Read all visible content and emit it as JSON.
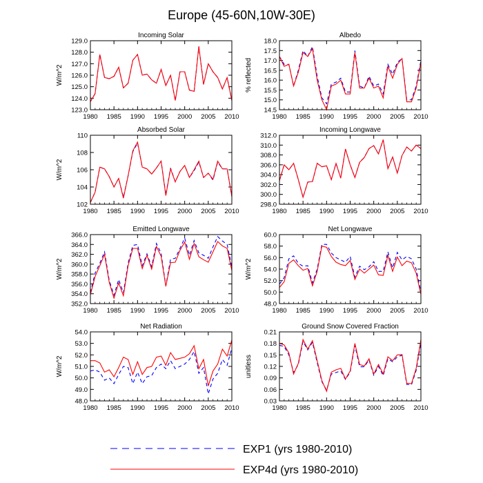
{
  "title": "Europe (45-60N,10W-30E)",
  "legend": [
    {
      "label": "EXP1 (yrs 1980-2010)",
      "color": "#0000ff",
      "dash": true
    },
    {
      "label": "EXP4d (yrs 1980-2010)",
      "color": "#ff0000",
      "dash": false
    }
  ],
  "chart_data": [
    {
      "type": "line",
      "title": "Incoming Solar",
      "ylabel": "W/m^2",
      "xlim": [
        1980,
        2010
      ],
      "ylim": [
        123.0,
        129.0
      ],
      "xticks": [
        "1980",
        "1985",
        "1990",
        "1995",
        "2000",
        "2005",
        "2010"
      ],
      "yticks": [
        "123.0",
        "124.0",
        "125.0",
        "126.0",
        "127.0",
        "128.0",
        "129.0"
      ],
      "x": [
        1980,
        1981,
        1982,
        1983,
        1984,
        1985,
        1986,
        1987,
        1988,
        1989,
        1990,
        1991,
        1992,
        1993,
        1994,
        1995,
        1996,
        1997,
        1998,
        1999,
        2000,
        2001,
        2002,
        2003,
        2004,
        2005,
        2006,
        2007,
        2008,
        2009,
        2010
      ],
      "series": [
        {
          "name": "EXP1",
          "values": [
            123.7,
            124.4,
            127.8,
            125.8,
            125.7,
            125.9,
            126.7,
            124.9,
            125.3,
            127.3,
            127.8,
            126.0,
            126.1,
            125.6,
            125.3,
            126.5,
            125.1,
            126.0,
            123.8,
            126.3,
            126.3,
            124.7,
            124.6,
            128.5,
            125.2,
            127.0,
            126.3,
            125.8,
            124.8,
            125.8,
            123.8
          ]
        },
        {
          "name": "EXP4d",
          "values": [
            123.7,
            124.4,
            127.8,
            125.8,
            125.7,
            125.9,
            126.7,
            124.9,
            125.3,
            127.3,
            127.8,
            126.0,
            126.1,
            125.6,
            125.3,
            126.5,
            125.1,
            126.0,
            123.8,
            126.3,
            126.3,
            124.7,
            124.6,
            128.5,
            125.2,
            127.0,
            126.3,
            125.8,
            124.8,
            125.8,
            123.8
          ]
        }
      ]
    },
    {
      "type": "line",
      "title": "Albedo",
      "ylabel": "% reflected",
      "xlim": [
        1980,
        2010
      ],
      "ylim": [
        14.5,
        18.0
      ],
      "xticks": [
        "1980",
        "1985",
        "1990",
        "1995",
        "2000",
        "2005",
        "2010"
      ],
      "yticks": [
        "14.5",
        "15.0",
        "15.5",
        "16.0",
        "16.5",
        "17.0",
        "17.5",
        "18.0"
      ],
      "x": [
        1980,
        1981,
        1982,
        1983,
        1984,
        1985,
        1986,
        1987,
        1988,
        1989,
        1990,
        1991,
        1992,
        1993,
        1994,
        1995,
        1996,
        1997,
        1998,
        1999,
        2000,
        2001,
        2002,
        2003,
        2004,
        2005,
        2006,
        2007,
        2008,
        2009,
        2010
      ],
      "series": [
        {
          "name": "EXP1",
          "values": [
            17.2,
            16.8,
            16.8,
            15.7,
            16.5,
            17.5,
            17.2,
            17.7,
            16.2,
            15.1,
            14.8,
            15.8,
            15.9,
            16.1,
            15.4,
            15.4,
            17.5,
            15.7,
            15.6,
            16.2,
            15.7,
            15.8,
            15.3,
            16.8,
            16.3,
            16.9,
            17.1,
            15.0,
            15.0,
            15.7,
            17.0
          ]
        },
        {
          "name": "EXP4d",
          "values": [
            17.2,
            16.7,
            16.8,
            15.7,
            16.4,
            17.4,
            17.2,
            17.6,
            16.0,
            15.0,
            14.5,
            15.7,
            15.8,
            16.0,
            15.3,
            15.3,
            17.4,
            15.6,
            15.6,
            16.1,
            15.6,
            15.7,
            15.1,
            16.7,
            16.1,
            16.8,
            17.1,
            14.9,
            14.9,
            15.6,
            16.9
          ]
        }
      ]
    },
    {
      "type": "line",
      "title": "Absorbed Solar",
      "ylabel": "W/m^2",
      "xlim": [
        1980,
        2010
      ],
      "ylim": [
        102,
        110
      ],
      "xticks": [
        "1980",
        "1985",
        "1990",
        "1995",
        "2000",
        "2005",
        "2010"
      ],
      "yticks": [
        "102",
        "104",
        "106",
        "108",
        "110"
      ],
      "x": [
        1980,
        1981,
        1982,
        1983,
        1984,
        1985,
        1986,
        1987,
        1988,
        1989,
        1990,
        1991,
        1992,
        1993,
        1994,
        1995,
        1996,
        1997,
        1998,
        1999,
        2000,
        2001,
        2002,
        2003,
        2004,
        2005,
        2006,
        2007,
        2008,
        2009,
        2010
      ],
      "series": [
        {
          "name": "EXP1",
          "values": [
            102.2,
            103.4,
            106.3,
            106.1,
            105.2,
            104.0,
            105.0,
            102.8,
            105.3,
            108.1,
            109.1,
            106.3,
            106.1,
            105.5,
            106.2,
            107.0,
            103.1,
            106.2,
            104.6,
            105.8,
            106.5,
            105.1,
            105.9,
            106.9,
            105.1,
            105.6,
            104.8,
            106.9,
            106.1,
            106.1,
            102.9
          ]
        },
        {
          "name": "EXP4d",
          "values": [
            102.2,
            103.4,
            106.3,
            106.1,
            105.2,
            104.0,
            105.0,
            102.7,
            105.3,
            108.2,
            109.2,
            106.3,
            106.1,
            105.5,
            106.2,
            107.0,
            103.0,
            106.1,
            104.6,
            105.8,
            106.5,
            105.1,
            106.0,
            107.0,
            105.1,
            105.6,
            104.9,
            107.0,
            106.1,
            106.1,
            102.9
          ]
        }
      ]
    },
    {
      "type": "line",
      "title": "Incoming Longwave",
      "ylabel": "",
      "xlim": [
        1980,
        2010
      ],
      "ylim": [
        298.0,
        312.0
      ],
      "xticks": [
        "1980",
        "1985",
        "1990",
        "1995",
        "2000",
        "2005",
        "2010"
      ],
      "yticks": [
        "298.0",
        "300.0",
        "302.0",
        "304.0",
        "306.0",
        "308.0",
        "310.0",
        "312.0"
      ],
      "x": [
        1980,
        1981,
        1982,
        1983,
        1984,
        1985,
        1986,
        1987,
        1988,
        1989,
        1990,
        1991,
        1992,
        1993,
        1994,
        1995,
        1996,
        1997,
        1998,
        1999,
        2000,
        2001,
        2002,
        2003,
        2004,
        2005,
        2006,
        2007,
        2008,
        2009,
        2010
      ],
      "series": [
        {
          "name": "EXP1",
          "values": [
            302.8,
            306.0,
            305.0,
            306.3,
            303.0,
            299.4,
            302.5,
            302.6,
            306.3,
            305.6,
            305.8,
            303.0,
            306.3,
            303.3,
            309.2,
            306.0,
            303.4,
            306.5,
            307.5,
            309.3,
            309.9,
            308.2,
            311.1,
            305.2,
            307.6,
            304.3,
            307.9,
            309.6,
            308.8,
            310.0,
            309.3
          ]
        },
        {
          "name": "EXP4d",
          "values": [
            302.8,
            306.0,
            305.0,
            306.3,
            303.0,
            299.4,
            302.5,
            302.6,
            306.3,
            305.6,
            305.8,
            303.0,
            306.3,
            303.3,
            309.2,
            306.0,
            303.4,
            306.5,
            307.5,
            309.3,
            309.9,
            308.2,
            311.1,
            305.2,
            307.6,
            304.3,
            307.9,
            309.6,
            308.8,
            310.0,
            309.3
          ]
        }
      ]
    },
    {
      "type": "line",
      "title": "Emitted Longwave",
      "ylabel": "W/m^2",
      "xlim": [
        1980,
        2010
      ],
      "ylim": [
        352.0,
        366.0
      ],
      "xticks": [
        "1980",
        "1985",
        "1990",
        "1995",
        "2000",
        "2005",
        "2010"
      ],
      "yticks": [
        "352.0",
        "354.0",
        "356.0",
        "358.0",
        "360.0",
        "362.0",
        "364.0",
        "366.0"
      ],
      "x": [
        1980,
        1981,
        1982,
        1983,
        1984,
        1985,
        1986,
        1987,
        1988,
        1989,
        1990,
        1991,
        1992,
        1993,
        1994,
        1995,
        1996,
        1997,
        1998,
        1999,
        2000,
        2001,
        2002,
        2003,
        2004,
        2005,
        2006,
        2007,
        2008,
        2009,
        2010
      ],
      "series": [
        {
          "name": "EXP1",
          "values": [
            354.2,
            358.2,
            360.2,
            362.5,
            356.7,
            353.7,
            356.9,
            354.2,
            360.2,
            363.8,
            364.0,
            359.7,
            362.1,
            359.5,
            364.2,
            362.2,
            355.6,
            361.0,
            361.2,
            363.2,
            365.3,
            361.8,
            364.8,
            362.3,
            361.8,
            361.2,
            363.5,
            365.6,
            364.7,
            364.0,
            359.4
          ]
        },
        {
          "name": "EXP4d",
          "values": [
            353.8,
            357.5,
            359.7,
            362.0,
            356.3,
            353.1,
            356.2,
            353.6,
            359.7,
            363.2,
            363.2,
            359.1,
            361.8,
            359.0,
            363.6,
            361.6,
            355.5,
            360.3,
            360.4,
            362.8,
            364.5,
            361.0,
            364.2,
            361.5,
            360.9,
            360.4,
            362.5,
            364.6,
            363.7,
            363.2,
            358.7
          ]
        }
      ]
    },
    {
      "type": "line",
      "title": "Net Longwave",
      "ylabel": "W/m^2",
      "xlim": [
        1980,
        2010
      ],
      "ylim": [
        48.0,
        60.0
      ],
      "xticks": [
        "1980",
        "1985",
        "1990",
        "1995",
        "2000",
        "2005",
        "2010"
      ],
      "yticks": [
        "48.0",
        "50.0",
        "52.0",
        "54.0",
        "56.0",
        "58.0",
        "60.0"
      ],
      "x": [
        1980,
        1981,
        1982,
        1983,
        1984,
        1985,
        1986,
        1987,
        1988,
        1989,
        1990,
        1991,
        1992,
        1993,
        1994,
        1995,
        1996,
        1997,
        1998,
        1999,
        2000,
        2001,
        2002,
        2003,
        2004,
        2005,
        2006,
        2007,
        2008,
        2009,
        2010
      ],
      "series": [
        {
          "name": "EXP1",
          "values": [
            51.4,
            52.5,
            55.8,
            56.3,
            55.0,
            54.5,
            54.6,
            51.6,
            54.0,
            58.3,
            58.3,
            56.8,
            56.0,
            55.6,
            55.2,
            56.2,
            52.6,
            54.5,
            53.9,
            54.4,
            55.3,
            53.6,
            53.6,
            57.0,
            54.2,
            56.9,
            55.6,
            56.2,
            55.8,
            54.0,
            50.0
          ]
        },
        {
          "name": "EXP4d",
          "values": [
            50.8,
            51.8,
            55.0,
            55.6,
            54.6,
            53.8,
            54.1,
            51.1,
            53.6,
            58.0,
            57.8,
            56.2,
            55.2,
            54.8,
            54.6,
            55.5,
            52.2,
            54.0,
            53.3,
            54.0,
            54.7,
            53.0,
            52.9,
            56.4,
            53.6,
            56.1,
            54.6,
            55.4,
            55.1,
            53.3,
            49.6
          ]
        }
      ]
    },
    {
      "type": "line",
      "title": "Net Radiation",
      "ylabel": "W/m^2",
      "xlim": [
        1980,
        2010
      ],
      "ylim": [
        48.0,
        54.0
      ],
      "xticks": [
        "1980",
        "1985",
        "1990",
        "1995",
        "2000",
        "2005",
        "2010"
      ],
      "yticks": [
        "48.0",
        "49.0",
        "50.0",
        "51.0",
        "52.0",
        "53.0",
        "54.0"
      ],
      "x": [
        1980,
        1981,
        1982,
        1983,
        1984,
        1985,
        1986,
        1987,
        1988,
        1989,
        1990,
        1991,
        1992,
        1993,
        1994,
        1995,
        1996,
        1997,
        1998,
        1999,
        2000,
        2001,
        2002,
        2003,
        2004,
        2005,
        2006,
        2007,
        2008,
        2009,
        2010
      ],
      "series": [
        {
          "name": "EXP1",
          "values": [
            50.6,
            50.7,
            50.5,
            49.8,
            50.0,
            49.5,
            50.3,
            51.0,
            50.9,
            49.5,
            50.5,
            49.5,
            50.1,
            50.2,
            50.9,
            51.2,
            50.8,
            51.5,
            50.8,
            51.0,
            51.2,
            51.6,
            52.3,
            50.4,
            50.9,
            48.6,
            49.9,
            50.4,
            51.6,
            51.1,
            52.6
          ]
        },
        {
          "name": "EXP4d",
          "values": [
            51.5,
            51.5,
            51.3,
            50.5,
            50.7,
            50.1,
            50.9,
            51.8,
            51.6,
            50.3,
            51.4,
            50.3,
            50.9,
            51.0,
            51.8,
            51.9,
            51.1,
            52.2,
            51.6,
            51.7,
            51.8,
            52.1,
            52.8,
            50.8,
            51.6,
            49.3,
            50.6,
            51.2,
            52.5,
            51.9,
            53.3
          ]
        }
      ]
    },
    {
      "type": "line",
      "title": "Ground Snow Covered Fraction",
      "ylabel": "unitless",
      "xlim": [
        1980,
        2010
      ],
      "ylim": [
        0.03,
        0.21
      ],
      "xticks": [
        "1980",
        "1985",
        "1990",
        "1995",
        "2000",
        "2005",
        "2010"
      ],
      "yticks": [
        "0.03",
        "0.06",
        "0.09",
        "0.12",
        "0.15",
        "0.18",
        "0.21"
      ],
      "x": [
        1980,
        1981,
        1982,
        1983,
        1984,
        1985,
        1986,
        1987,
        1988,
        1989,
        1990,
        1991,
        1992,
        1993,
        1994,
        1995,
        1996,
        1997,
        1998,
        1999,
        2000,
        2001,
        2002,
        2003,
        2004,
        2005,
        2006,
        2007,
        2008,
        2009,
        2010
      ],
      "series": [
        {
          "name": "EXP1",
          "values": [
            0.175,
            0.172,
            0.15,
            0.104,
            0.125,
            0.185,
            0.163,
            0.183,
            0.13,
            0.08,
            0.058,
            0.1,
            0.104,
            0.108,
            0.086,
            0.105,
            0.175,
            0.119,
            0.119,
            0.137,
            0.097,
            0.12,
            0.096,
            0.14,
            0.132,
            0.145,
            0.149,
            0.073,
            0.072,
            0.11,
            0.182
          ]
        },
        {
          "name": "EXP4d",
          "values": [
            0.18,
            0.176,
            0.155,
            0.1,
            0.128,
            0.19,
            0.165,
            0.187,
            0.135,
            0.083,
            0.055,
            0.105,
            0.111,
            0.115,
            0.087,
            0.108,
            0.18,
            0.125,
            0.121,
            0.14,
            0.1,
            0.125,
            0.1,
            0.145,
            0.135,
            0.15,
            0.151,
            0.076,
            0.075,
            0.115,
            0.19
          ]
        }
      ]
    }
  ]
}
